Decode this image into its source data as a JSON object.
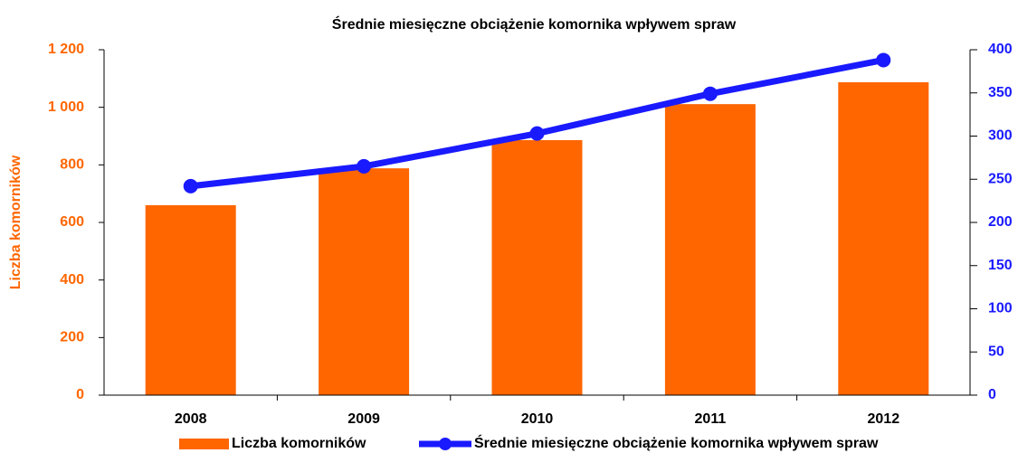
{
  "chart_data": {
    "type": "bar",
    "title": "Średnie miesięczne obciążenie komornika wpływem spraw",
    "y_label": "Liczba  komorników",
    "categories": [
      "2008",
      "2009",
      "2010",
      "2011",
      "2012"
    ],
    "series": [
      {
        "name": "Liczba komorników",
        "type": "bar",
        "axis": "y",
        "color": "#ff6600",
        "values": [
          660,
          788,
          886,
          1011,
          1087
        ]
      },
      {
        "name": "Średnie miesięczne obciążenie komornika wpływem spraw",
        "type": "line",
        "axis": "y2",
        "color": "#1a1aff",
        "values": [
          242,
          265,
          303,
          349,
          388
        ]
      }
    ],
    "ylim": [
      0,
      1200
    ],
    "yticks": [
      0,
      200,
      400,
      600,
      800,
      {
        "value": 1000,
        "label": "1 000"
      },
      {
        "value": 1200,
        "label": "1 200"
      }
    ],
    "y2lim": [
      0,
      400
    ],
    "y2ticks": [
      0,
      50,
      100,
      150,
      200,
      250,
      300,
      350,
      400
    ],
    "grid": false,
    "legend": "bottom"
  }
}
